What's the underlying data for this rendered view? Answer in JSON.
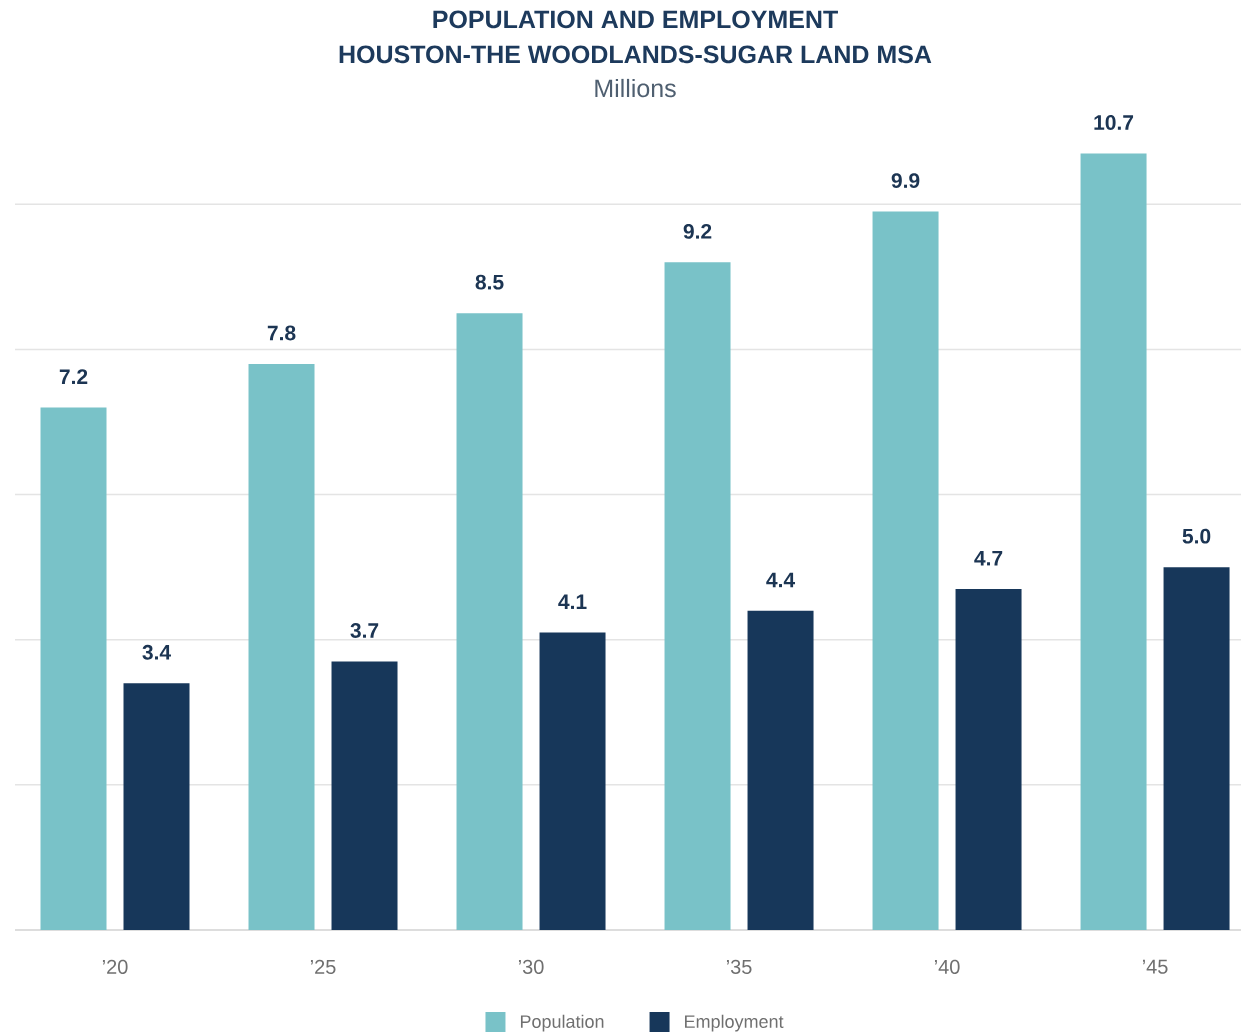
{
  "chart_data": {
    "type": "bar",
    "title": "POPULATION AND EMPLOYMENT",
    "subtitle": "HOUSTON-THE WOODLANDS-SUGAR LAND MSA",
    "ylabel": "Millions",
    "categories": [
      "’20",
      "’25",
      "’30",
      "’35",
      "’40",
      "’45"
    ],
    "series": [
      {
        "name": "Population",
        "color": "#79c2c8",
        "values": [
          7.2,
          7.8,
          8.5,
          9.2,
          9.9,
          10.7
        ],
        "value_labels": [
          "7.2",
          "7.8",
          "8.5",
          "9.2",
          "9.9",
          "10.7"
        ]
      },
      {
        "name": "Employment",
        "color": "#17375a",
        "values": [
          3.4,
          3.7,
          4.1,
          4.4,
          4.7,
          5.0
        ],
        "value_labels": [
          "3.4",
          "3.7",
          "4.1",
          "4.4",
          "4.7",
          "5.0"
        ]
      }
    ],
    "yticks": [
      0,
      2,
      4,
      6,
      8,
      10
    ],
    "tick_labels": "x",
    "grid": "y",
    "legend": "bottom"
  }
}
